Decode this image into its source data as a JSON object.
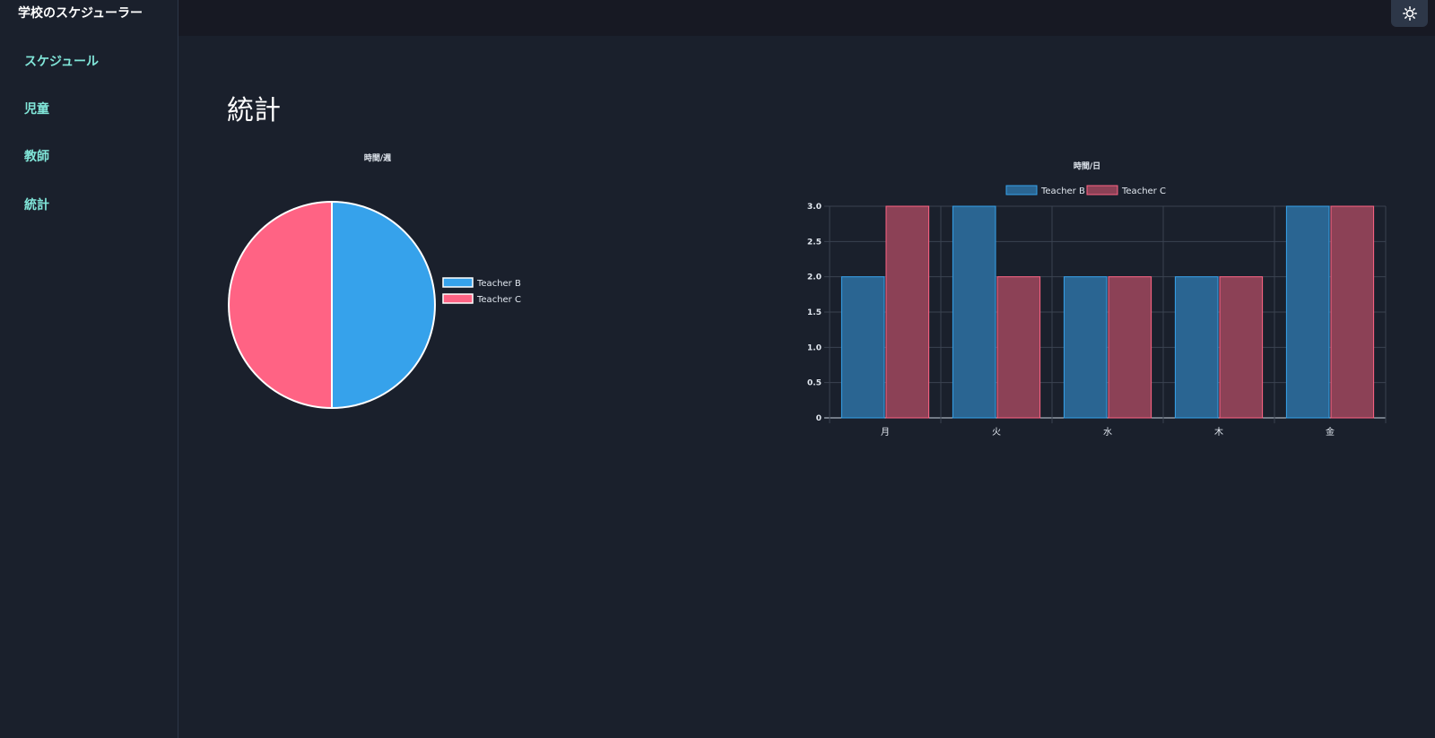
{
  "app": {
    "title": "学校のスケジューラー"
  },
  "sidebar": {
    "items": [
      {
        "label": "スケジュール"
      },
      {
        "label": "児童"
      },
      {
        "label": "教師"
      },
      {
        "label": "統計"
      }
    ]
  },
  "topbar": {
    "theme_icon": "sun-icon"
  },
  "main": {
    "title": "統計"
  },
  "colors": {
    "teacher_b": "#36a2eb",
    "teacher_c": "#ff6384",
    "teacher_b_bar": "#2a6592",
    "teacher_c_bar": "#8c4156",
    "nav_accent": "#81e6d9"
  },
  "chart_data": [
    {
      "type": "pie",
      "title": "時間/週",
      "legend": "right",
      "labels": [
        "Teacher B",
        "Teacher C"
      ],
      "values": [
        1,
        1
      ]
    },
    {
      "type": "bar",
      "title": "時間/日",
      "legend": "top",
      "categories": [
        "月",
        "火",
        "水",
        "木",
        "金"
      ],
      "series": [
        {
          "name": "Teacher B",
          "values": [
            2,
            3,
            2,
            2,
            3
          ]
        },
        {
          "name": "Teacher C",
          "values": [
            3,
            2,
            2,
            2,
            3
          ]
        }
      ],
      "ylim": [
        0,
        3
      ],
      "yticks": [
        "0",
        "0.5",
        "1.0",
        "1.5",
        "2.0",
        "2.5",
        "3.0"
      ],
      "grid": true
    }
  ]
}
